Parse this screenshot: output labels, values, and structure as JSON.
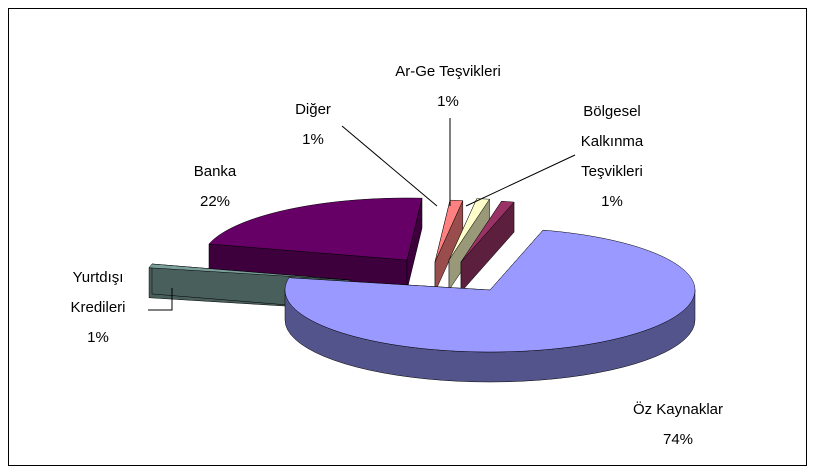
{
  "chart_data": {
    "type": "pie3d",
    "categories": [
      "Öz Kaynaklar",
      "Yurtdışı Kredileri",
      "Banka",
      "Diğer",
      "Ar-Ge Teşvikleri",
      "Bölgesel Kalkınma Teşvikleri"
    ],
    "values": [
      74,
      1,
      22,
      1,
      1,
      1
    ],
    "value_labels": [
      "74%",
      "1%",
      "22%",
      "1%",
      "1%",
      "1%"
    ],
    "colors": [
      "#9999ff",
      "#7a9e9a",
      "#660066",
      "#ff8080",
      "#ffffcc",
      "#993366"
    ]
  }
}
